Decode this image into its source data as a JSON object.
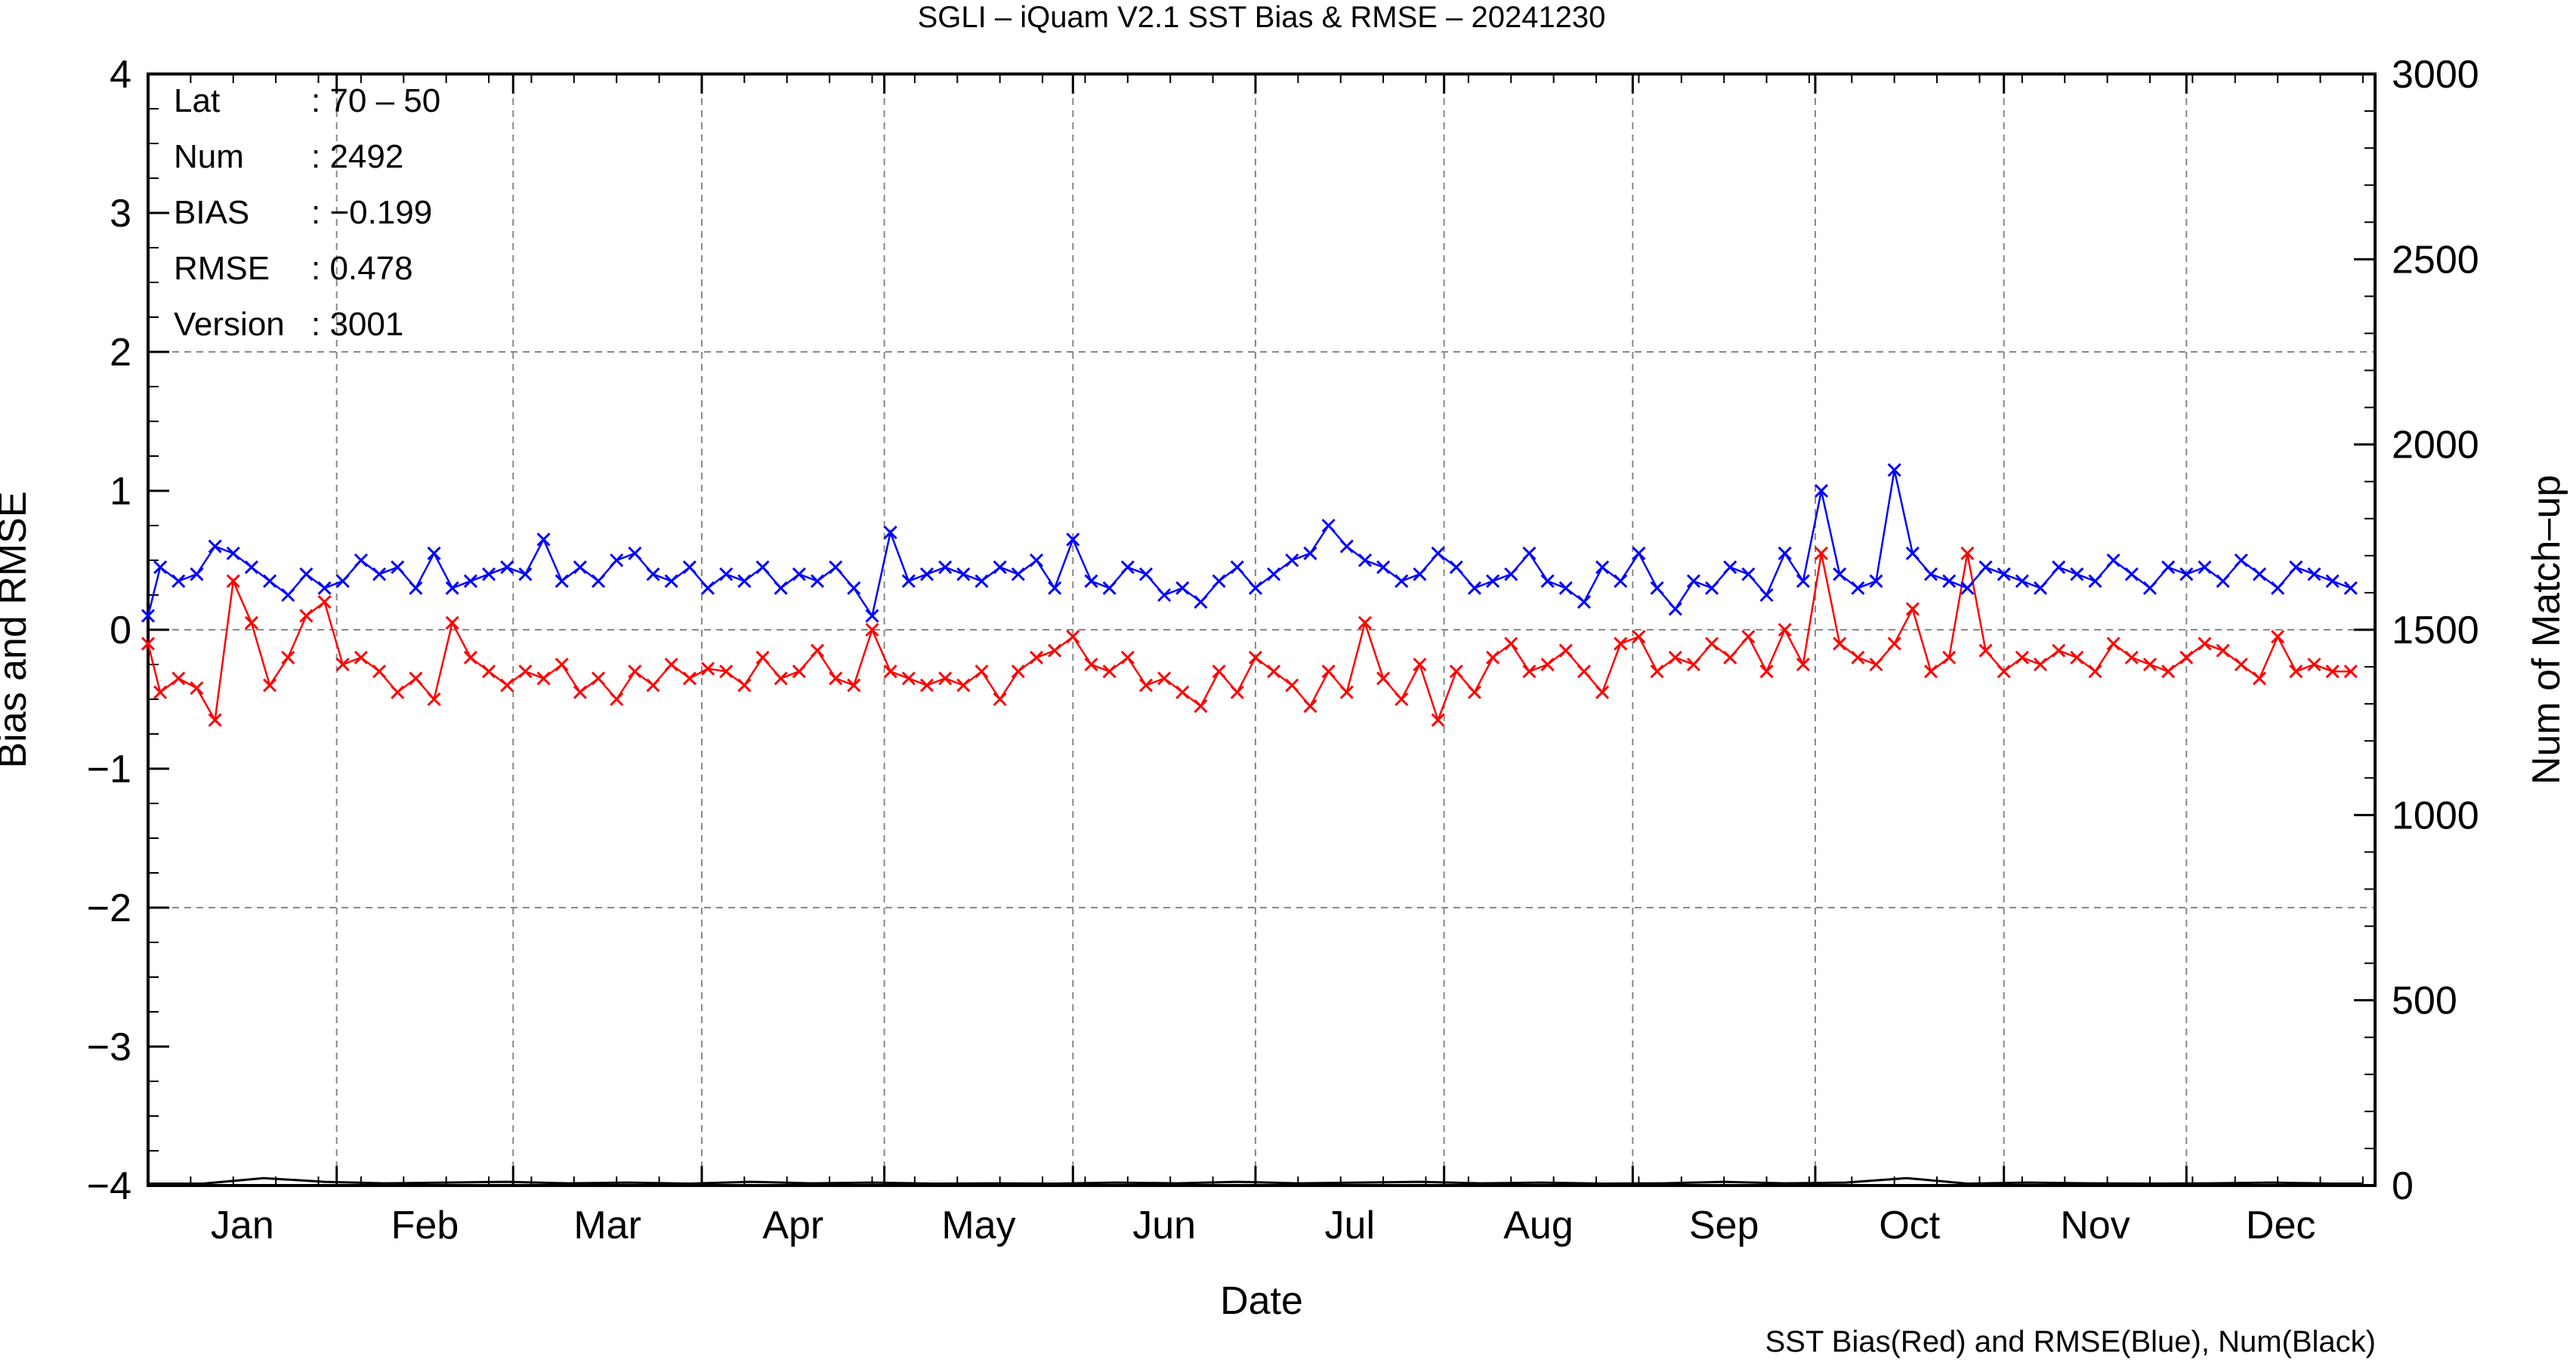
{
  "chart_data": {
    "type": "line",
    "title": "SGLI – iQuam V2.1 SST Bias & RMSE  – 20241230",
    "xlabel": "Date",
    "ylabel_left": "Bias and RMSE",
    "ylabel_right": "Num of Match–up",
    "caption": "SST Bias(Red) and RMSE(Blue), Num(Black)",
    "ylim_left": [
      -4,
      4
    ],
    "ylim_right": [
      0,
      3000
    ],
    "yticks_left": [
      "4",
      "3",
      "2",
      "1",
      "0",
      "−1",
      "−2",
      "−3",
      "−4"
    ],
    "yticks_right": [
      "3000",
      "2500",
      "2000",
      "1500",
      "1000",
      "500",
      "0"
    ],
    "months": [
      "Jan",
      "Feb",
      "Mar",
      "Apr",
      "May",
      "Jun",
      "Jul",
      "Aug",
      "Sep",
      "Oct",
      "Nov",
      "Dec"
    ],
    "grid": true,
    "info": [
      {
        "label": "Lat",
        "value": ": 70 – 50"
      },
      {
        "label": "Num",
        "value": ": 2492"
      },
      {
        "label": "BIAS",
        "value": ": −0.199"
      },
      {
        "label": "RMSE",
        "value": ": 0.478"
      },
      {
        "label": "Version",
        "value": ": 3001"
      }
    ],
    "colors": {
      "bias": "#ff0000",
      "rmse": "#0000ff",
      "num": "#000000",
      "grid": "#888888"
    },
    "series": [
      {
        "name": "Bias",
        "color": "#ff0000",
        "axis": "left",
        "x": [
          1,
          3,
          6,
          9,
          12,
          15,
          18,
          21,
          24,
          27,
          30,
          33,
          36,
          39,
          42,
          45,
          48,
          51,
          54,
          57,
          60,
          63,
          66,
          69,
          72,
          75,
          78,
          81,
          84,
          87,
          90,
          93,
          96,
          99,
          102,
          105,
          108,
          111,
          114,
          117,
          120,
          123,
          126,
          129,
          132,
          135,
          138,
          141,
          144,
          147,
          150,
          153,
          156,
          159,
          162,
          165,
          168,
          171,
          174,
          177,
          180,
          183,
          186,
          189,
          192,
          195,
          198,
          201,
          204,
          207,
          210,
          213,
          216,
          219,
          222,
          225,
          228,
          231,
          234,
          237,
          240,
          243,
          246,
          249,
          252,
          255,
          258,
          261,
          264,
          267,
          270,
          273,
          276,
          279,
          282,
          285,
          288,
          291,
          294,
          297,
          300,
          303,
          306,
          309,
          312,
          315,
          318,
          321,
          324,
          327,
          330,
          333,
          336,
          339,
          342,
          345,
          348,
          351,
          354,
          357,
          360,
          363
        ],
        "y": [
          -0.1,
          -0.45,
          -0.35,
          -0.42,
          -0.65,
          0.35,
          0.05,
          -0.4,
          -0.2,
          0.1,
          0.2,
          -0.25,
          -0.2,
          -0.3,
          -0.45,
          -0.35,
          -0.5,
          0.05,
          -0.2,
          -0.3,
          -0.4,
          -0.3,
          -0.35,
          -0.25,
          -0.45,
          -0.35,
          -0.5,
          -0.3,
          -0.4,
          -0.25,
          -0.35,
          -0.28,
          -0.3,
          -0.4,
          -0.2,
          -0.35,
          -0.3,
          -0.15,
          -0.35,
          -0.4,
          0.0,
          -0.3,
          -0.35,
          -0.4,
          -0.35,
          -0.4,
          -0.3,
          -0.5,
          -0.3,
          -0.2,
          -0.15,
          -0.05,
          -0.25,
          -0.3,
          -0.2,
          -0.4,
          -0.35,
          -0.45,
          -0.55,
          -0.3,
          -0.45,
          -0.2,
          -0.3,
          -0.4,
          -0.55,
          -0.3,
          -0.45,
          0.05,
          -0.35,
          -0.5,
          -0.25,
          -0.65,
          -0.3,
          -0.45,
          -0.2,
          -0.1,
          -0.3,
          -0.25,
          -0.15,
          -0.3,
          -0.45,
          -0.1,
          -0.05,
          -0.3,
          -0.2,
          -0.25,
          -0.1,
          -0.2,
          -0.05,
          -0.3,
          0.0,
          -0.25,
          0.55,
          -0.1,
          -0.2,
          -0.25,
          -0.1,
          0.15,
          -0.3,
          -0.2,
          0.55,
          -0.15,
          -0.3,
          -0.2,
          -0.25,
          -0.15,
          -0.2,
          -0.3,
          -0.1,
          -0.2,
          -0.25,
          -0.3,
          -0.2,
          -0.1,
          -0.15,
          -0.25,
          -0.35,
          -0.05,
          -0.3,
          -0.25,
          -0.3,
          -0.3
        ]
      },
      {
        "name": "RMSE",
        "color": "#0000ff",
        "axis": "left",
        "x": [
          1,
          3,
          6,
          9,
          12,
          15,
          18,
          21,
          24,
          27,
          30,
          33,
          36,
          39,
          42,
          45,
          48,
          51,
          54,
          57,
          60,
          63,
          66,
          69,
          72,
          75,
          78,
          81,
          84,
          87,
          90,
          93,
          96,
          99,
          102,
          105,
          108,
          111,
          114,
          117,
          120,
          123,
          126,
          129,
          132,
          135,
          138,
          141,
          144,
          147,
          150,
          153,
          156,
          159,
          162,
          165,
          168,
          171,
          174,
          177,
          180,
          183,
          186,
          189,
          192,
          195,
          198,
          201,
          204,
          207,
          210,
          213,
          216,
          219,
          222,
          225,
          228,
          231,
          234,
          237,
          240,
          243,
          246,
          249,
          252,
          255,
          258,
          261,
          264,
          267,
          270,
          273,
          276,
          279,
          282,
          285,
          288,
          291,
          294,
          297,
          300,
          303,
          306,
          309,
          312,
          315,
          318,
          321,
          324,
          327,
          330,
          333,
          336,
          339,
          342,
          345,
          348,
          351,
          354,
          357,
          360,
          363
        ],
        "y": [
          0.1,
          0.45,
          0.35,
          0.4,
          0.6,
          0.55,
          0.45,
          0.35,
          0.25,
          0.4,
          0.3,
          0.35,
          0.5,
          0.4,
          0.45,
          0.3,
          0.55,
          0.3,
          0.35,
          0.4,
          0.45,
          0.4,
          0.65,
          0.35,
          0.45,
          0.35,
          0.5,
          0.55,
          0.4,
          0.35,
          0.45,
          0.3,
          0.4,
          0.35,
          0.45,
          0.3,
          0.4,
          0.35,
          0.45,
          0.3,
          0.1,
          0.7,
          0.35,
          0.4,
          0.45,
          0.4,
          0.35,
          0.45,
          0.4,
          0.5,
          0.3,
          0.65,
          0.35,
          0.3,
          0.45,
          0.4,
          0.25,
          0.3,
          0.2,
          0.35,
          0.45,
          0.3,
          0.4,
          0.5,
          0.55,
          0.75,
          0.6,
          0.5,
          0.45,
          0.35,
          0.4,
          0.55,
          0.45,
          0.3,
          0.35,
          0.4,
          0.55,
          0.35,
          0.3,
          0.2,
          0.45,
          0.35,
          0.55,
          0.3,
          0.15,
          0.35,
          0.3,
          0.45,
          0.4,
          0.25,
          0.55,
          0.35,
          1.0,
          0.4,
          0.3,
          0.35,
          1.15,
          0.55,
          0.4,
          0.35,
          0.3,
          0.45,
          0.4,
          0.35,
          0.3,
          0.45,
          0.4,
          0.35,
          0.5,
          0.4,
          0.3,
          0.45,
          0.4,
          0.45,
          0.35,
          0.5,
          0.4,
          0.3,
          0.45,
          0.4,
          0.35,
          0.3
        ]
      },
      {
        "name": "Num",
        "color": "#000000",
        "axis": "right",
        "x": [
          1,
          10,
          20,
          30,
          40,
          50,
          60,
          70,
          80,
          90,
          100,
          110,
          120,
          130,
          140,
          150,
          160,
          170,
          180,
          190,
          200,
          210,
          220,
          230,
          240,
          250,
          260,
          270,
          280,
          290,
          300,
          310,
          320,
          330,
          340,
          350,
          360,
          365
        ],
        "y": [
          5,
          5,
          20,
          10,
          6,
          8,
          10,
          6,
          8,
          5,
          10,
          6,
          8,
          5,
          6,
          5,
          8,
          6,
          10,
          6,
          8,
          10,
          6,
          8,
          5,
          6,
          10,
          6,
          8,
          20,
          5,
          8,
          6,
          5,
          6,
          8,
          5,
          5
        ]
      }
    ]
  }
}
